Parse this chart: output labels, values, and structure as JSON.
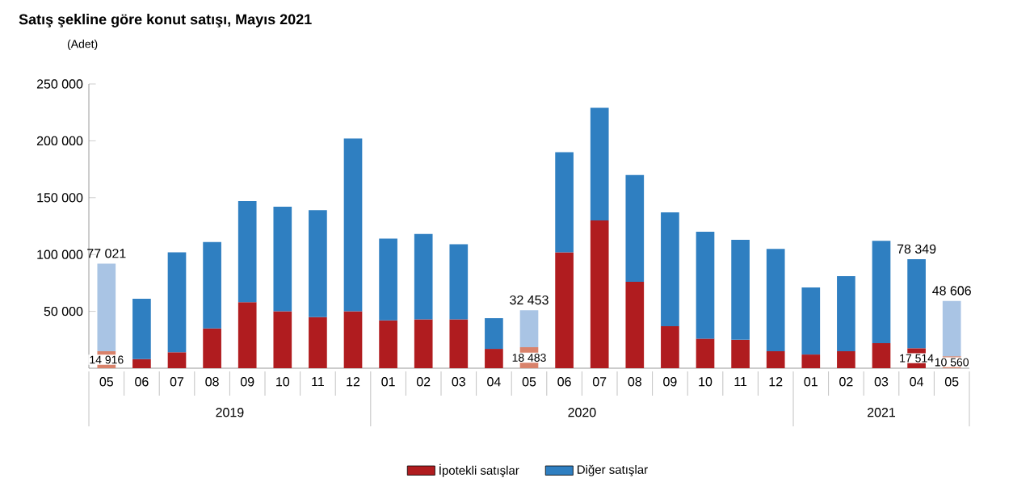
{
  "chart_data": {
    "type": "bar",
    "stacked": true,
    "title": "Satış şekline göre konut satışı, Mayıs 2021",
    "ylabel": "(Adet)",
    "categories": [
      "05",
      "06",
      "07",
      "08",
      "09",
      "10",
      "11",
      "12",
      "01",
      "02",
      "03",
      "04",
      "05",
      "06",
      "07",
      "08",
      "09",
      "10",
      "11",
      "12",
      "01",
      "02",
      "03",
      "04",
      "05"
    ],
    "series": [
      {
        "name": "İpotekli satışlar",
        "color": "#b01c1f",
        "colors": [
          "#d9826b",
          "#b01c1f",
          "#b01c1f",
          "#b01c1f",
          "#b01c1f",
          "#b01c1f",
          "#b01c1f",
          "#b01c1f",
          "#b01c1f",
          "#b01c1f",
          "#b01c1f",
          "#b01c1f",
          "#d9826b",
          "#b01c1f",
          "#b01c1f",
          "#b01c1f",
          "#b01c1f",
          "#b01c1f",
          "#b01c1f",
          "#b01c1f",
          "#b01c1f",
          "#b01c1f",
          "#b01c1f",
          "#b01c1f",
          "#d9826b"
        ],
        "values": [
          14916,
          8000,
          14000,
          35000,
          58000,
          50000,
          45000,
          50000,
          42000,
          43000,
          43000,
          17000,
          18483,
          102000,
          130000,
          76000,
          37000,
          26000,
          25000,
          15000,
          12000,
          15000,
          22000,
          17514,
          10560
        ],
        "value_labels": [
          "14 916",
          null,
          null,
          null,
          null,
          null,
          null,
          null,
          null,
          null,
          null,
          null,
          "18 483",
          null,
          null,
          null,
          null,
          null,
          null,
          null,
          null,
          null,
          null,
          "17 514",
          "10 560"
        ]
      },
      {
        "name": "Diğer satışlar",
        "color": "#2f7fc1",
        "colors": [
          "#a9c4e4",
          "#2f7fc1",
          "#2f7fc1",
          "#2f7fc1",
          "#2f7fc1",
          "#2f7fc1",
          "#2f7fc1",
          "#2f7fc1",
          "#2f7fc1",
          "#2f7fc1",
          "#2f7fc1",
          "#2f7fc1",
          "#a9c4e4",
          "#2f7fc1",
          "#2f7fc1",
          "#2f7fc1",
          "#2f7fc1",
          "#2f7fc1",
          "#2f7fc1",
          "#2f7fc1",
          "#2f7fc1",
          "#2f7fc1",
          "#2f7fc1",
          "#2f7fc1",
          "#a9c4e4"
        ],
        "values": [
          77021,
          53000,
          88000,
          76000,
          89000,
          92000,
          94000,
          152000,
          72000,
          75000,
          66000,
          27000,
          32453,
          88000,
          99000,
          94000,
          100000,
          94000,
          88000,
          90000,
          59000,
          66000,
          90000,
          78349,
          48606
        ],
        "value_labels": [
          "77 021",
          null,
          null,
          null,
          null,
          null,
          null,
          null,
          null,
          null,
          null,
          null,
          "32 453",
          null,
          null,
          null,
          null,
          null,
          null,
          null,
          null,
          null,
          null,
          "78 349",
          "48 606"
        ]
      }
    ],
    "ylim": [
      0,
      250000
    ],
    "yticks": [
      {
        "value": 50000,
        "label": "50 000"
      },
      {
        "value": 100000,
        "label": "100 000"
      },
      {
        "value": 150000,
        "label": "150 000"
      },
      {
        "value": 200000,
        "label": "200 000"
      },
      {
        "value": 250000,
        "label": "250 000"
      }
    ],
    "annotations": [
      "2019",
      "2020",
      "2021"
    ],
    "grid": false,
    "legend": "bottom"
  }
}
